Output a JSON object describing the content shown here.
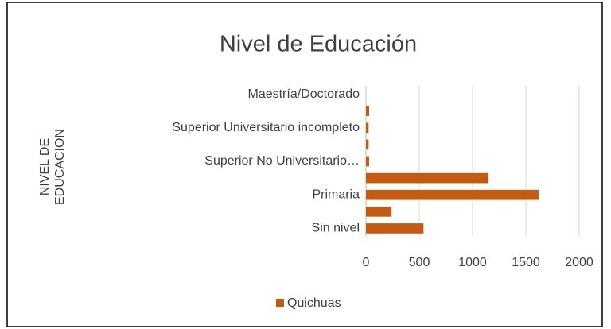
{
  "chart_data": {
    "type": "hbar",
    "title": "Nivel de Educación",
    "y_label": "NIVEL DE EDUCACION",
    "categories": [
      "Sin nivel",
      null,
      "Primaria",
      null,
      "Superior No Universitario…",
      null,
      "Superior Universitario incompleto",
      null,
      "Maestría/Doctorado"
    ],
    "series": [
      {
        "name": "Quichuas",
        "color": "#c55a11",
        "values": [
          540,
          240,
          1620,
          1150,
          30,
          25,
          25,
          30,
          0
        ]
      }
    ],
    "xlim": [
      0,
      2000
    ],
    "xticks": [
      0,
      500,
      1000,
      1500,
      2000
    ],
    "grid": true,
    "legend": "bottom"
  }
}
